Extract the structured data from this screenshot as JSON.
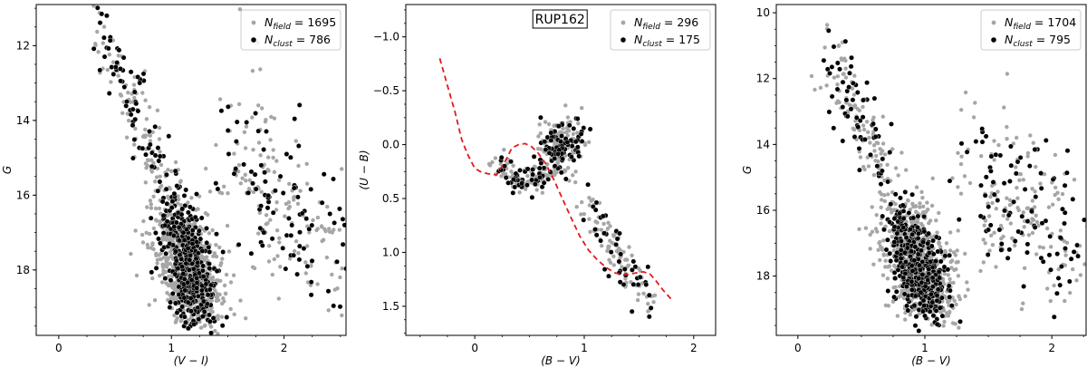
{
  "colors": {
    "field": "#a6a6a6",
    "cluster": "#000000",
    "cluster_edge": "#ffffff",
    "isochrone": "#e41a1c"
  },
  "chart_data": [
    {
      "type": "scatter",
      "xlabel": "(V − I)",
      "ylabel": "G",
      "xlim": [
        -0.2,
        2.55
      ],
      "ylim": [
        19.75,
        10.9
      ],
      "y_inverted": true,
      "xticks": [
        0,
        1,
        2
      ],
      "yticks": [
        12,
        14,
        16,
        18
      ],
      "legend_position": "top-right",
      "series": [
        {
          "name": "field",
          "legend_label": "N_field = 1695",
          "legend_main": "N",
          "legend_sub": "field",
          "legend_value": " = 1695",
          "count": 1695
        },
        {
          "name": "cluster",
          "legend_label": "N_clust = 786",
          "legend_main": "N",
          "legend_sub": "clust",
          "legend_value": " = 786",
          "count": 786
        }
      ],
      "distribution": {
        "ms_turnoff": [
          1.0,
          16.2
        ],
        "ms_bottom": [
          1.25,
          19.0
        ],
        "top_blue": [
          0.35,
          11.2
        ],
        "red_clump": [
          1.55,
          15.2
        ],
        "red_clump_extent": [
          2.5,
          17.5
        ]
      }
    },
    {
      "type": "scatter",
      "title": "RUP162",
      "xlabel": "(B − V)",
      "ylabel": "(U − B)",
      "xlim": [
        -0.63,
        2.2
      ],
      "ylim": [
        1.77,
        -1.3
      ],
      "y_inverted": true,
      "xticks": [
        0,
        1,
        2
      ],
      "yticks": [
        -1.0,
        -0.5,
        0.0,
        0.5,
        1.0,
        1.5
      ],
      "ytick_labels": [
        "−1.0",
        "−0.5",
        "0.0",
        "0.5",
        "1.0",
        "1.5"
      ],
      "legend_position": "top-right",
      "series": [
        {
          "name": "field",
          "legend_label": "N_field = 296",
          "legend_main": "N",
          "legend_sub": "field",
          "legend_value": " = 296",
          "count": 296
        },
        {
          "name": "cluster",
          "legend_label": "N_clust = 175",
          "legend_main": "N",
          "legend_sub": "clust",
          "legend_value": " = 175",
          "count": 175
        }
      ],
      "isochrone": {
        "style": "dashed",
        "x": [
          -0.32,
          -0.25,
          -0.18,
          -0.12,
          -0.07,
          -0.03,
          0.0,
          0.05,
          0.12,
          0.2,
          0.28,
          0.34,
          0.4,
          0.46,
          0.52,
          0.58,
          0.65,
          0.72,
          0.8,
          0.88,
          0.96,
          1.04,
          1.12,
          1.2,
          1.28,
          1.36,
          1.42,
          1.48,
          1.54,
          1.6,
          1.66,
          1.72,
          1.8
        ],
        "y": [
          -0.8,
          -0.55,
          -0.3,
          -0.05,
          0.08,
          0.16,
          0.22,
          0.25,
          0.27,
          0.28,
          0.15,
          0.03,
          0.0,
          -0.01,
          0.02,
          0.08,
          0.18,
          0.32,
          0.5,
          0.68,
          0.85,
          0.98,
          1.07,
          1.14,
          1.19,
          1.21,
          1.2,
          1.19,
          1.18,
          1.2,
          1.27,
          1.35,
          1.44
        ]
      },
      "distribution": {
        "blue_plume": [
          0.3,
          0.3
        ],
        "clump": [
          0.8,
          0.0
        ],
        "red_giant_branch": [
          [
            1.0,
            0.5
          ],
          [
            1.6,
            1.5
          ]
        ]
      }
    },
    {
      "type": "scatter",
      "xlabel": "(B − V)",
      "ylabel": "G",
      "xlim": [
        -0.17,
        2.27
      ],
      "ylim": [
        19.8,
        9.75
      ],
      "y_inverted": true,
      "xticks": [
        0,
        1,
        2
      ],
      "yticks": [
        10,
        12,
        14,
        16,
        18
      ],
      "legend_position": "top-right",
      "series": [
        {
          "name": "field",
          "legend_label": "N_field = 1704",
          "legend_main": "N",
          "legend_sub": "field",
          "legend_value": " = 1704",
          "count": 1704
        },
        {
          "name": "cluster",
          "legend_label": "N_clust = 795",
          "legend_main": "N",
          "legend_sub": "clust",
          "legend_value": " = 795",
          "count": 795
        }
      ],
      "distribution": {
        "ms_turnoff": [
          0.8,
          16.0
        ],
        "ms_bottom": [
          1.05,
          18.8
        ],
        "top_blue": [
          0.25,
          11.3
        ],
        "red_clump": [
          1.4,
          15.0
        ],
        "red_clump_extent": [
          2.2,
          17.2
        ]
      }
    }
  ]
}
